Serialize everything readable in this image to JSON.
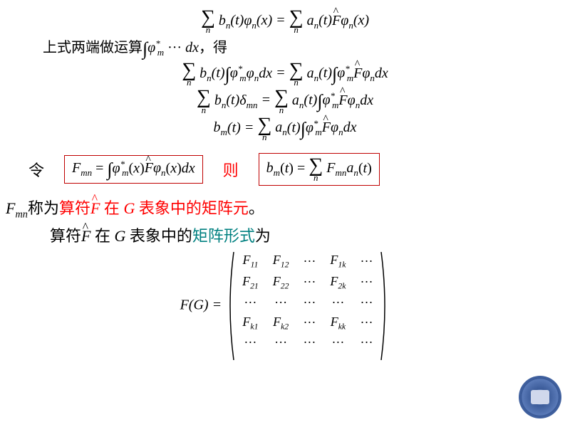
{
  "colors": {
    "red": "#ff0000",
    "teal": "#008080",
    "box_border": "#c00000",
    "text": "#000000",
    "bg": "#ffffff",
    "logo_outer": "#3a5a98",
    "logo_inner": "#d0d8ec"
  },
  "font": {
    "family": "Times New Roman / SimSun",
    "base_size": 20,
    "math_style": "italic"
  },
  "eq1": {
    "lhs_sigma": "∑",
    "lhs_sub": "n",
    "lhs_body": "b_n(t)φ_n(x)",
    "eq": "=",
    "rhs_sigma": "∑",
    "rhs_sub": "n",
    "rhs_body": "a_n(t)F̂φ_n(x)"
  },
  "line2": {
    "prefix": "上式两端做运算",
    "integral": "∫",
    "body": "φ*_m ··· dx",
    "suffix": "，得"
  },
  "eq3": {
    "lhs_sigma": "∑",
    "lhs_sub": "n",
    "lhs_body": "b_n(t)∫φ*_m φ_n dx",
    "eq": "=",
    "rhs_sigma": "∑",
    "rhs_sub": "n",
    "rhs_body": "a_n(t)∫φ*_m F̂φ_n dx"
  },
  "eq4": {
    "lhs_sigma": "∑",
    "lhs_sub": "n",
    "lhs_body": "b_n(t)δ_mn",
    "eq": "=",
    "rhs_sigma": "∑",
    "rhs_sub": "n",
    "rhs_body": "a_n(t)∫φ*_m F̂φ_n dx"
  },
  "eq5": {
    "lhs": "b_m(t)",
    "eq": "=",
    "rhs_sigma": "∑",
    "rhs_sub": "n",
    "rhs_body": "a_n(t)∫φ*_m F̂φ_n dx"
  },
  "line6": {
    "label_ling": "令",
    "box1": "F_mn = ∫φ*_m(x) F̂ φ_n(x) dx",
    "label_ze": "则",
    "box2": "b_m(t) = ∑_n F_mn a_n(t)"
  },
  "line7": {
    "Fmn": "F_mn",
    "t1": "称为",
    "t2": "算符",
    "Fhat": "F̂",
    "t3": "在",
    "G": "G",
    "t4": "表象中的矩阵元",
    "t5": "。"
  },
  "line8": {
    "t1": "算符",
    "Fhat": "F̂",
    "t2": "在",
    "G": "G",
    "t3": "表象中的",
    "t4": "矩阵形式",
    "t5": "为"
  },
  "matrix": {
    "lhs": "F(G) =",
    "rows": [
      [
        "F_11",
        "F_12",
        "···",
        "F_1k",
        "···"
      ],
      [
        "F_21",
        "F_22",
        "···",
        "F_2k",
        "···"
      ],
      [
        "···",
        "···",
        "···",
        "···",
        "···"
      ],
      [
        "F_k1",
        "F_k2",
        "···",
        "F_kk",
        "···"
      ],
      [
        "···",
        "···",
        "···",
        "···",
        "···"
      ]
    ]
  }
}
